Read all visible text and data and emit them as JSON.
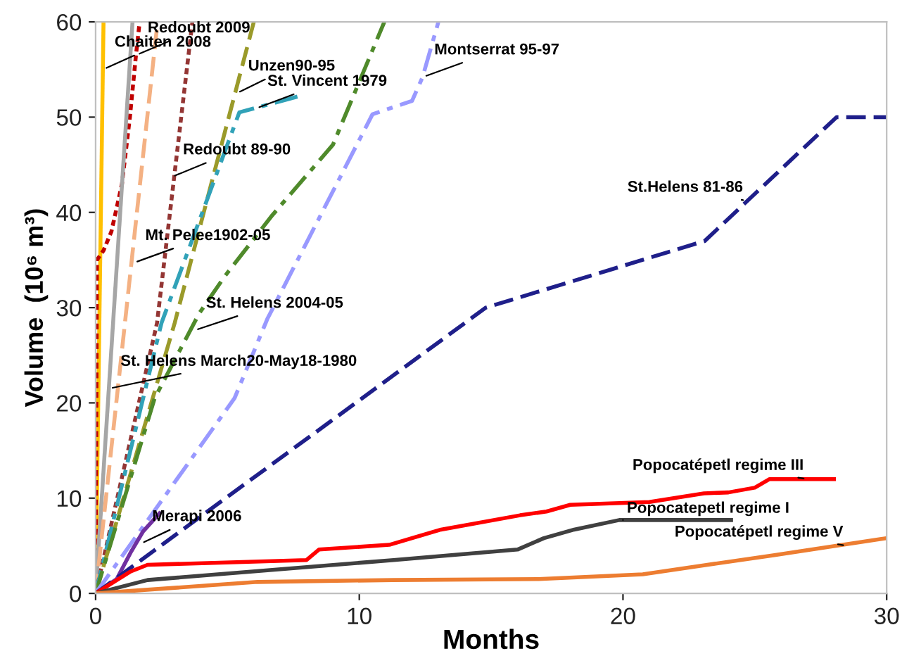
{
  "chart_data": {
    "type": "line",
    "xlabel": "Months",
    "ylabel": "Volume  (10⁶ m³)",
    "xlim": [
      0,
      30
    ],
    "ylim": [
      0,
      60
    ],
    "xticks": [
      0,
      10,
      20,
      30
    ],
    "yticks": [
      0,
      10,
      20,
      30,
      40,
      50,
      60
    ],
    "grid": false,
    "legend": false,
    "marker": "none",
    "series": [
      {
        "color": "#ffc000",
        "line_style": "solid",
        "x": [
          0,
          0.3
        ],
        "values": [
          0,
          60
        ]
      },
      {
        "color": "#c00000",
        "line_style": "dotted",
        "x": [
          0,
          0.05,
          0.3,
          0.6,
          1.0,
          1.3,
          1.53,
          1.67
        ],
        "values": [
          0,
          35,
          36,
          38,
          43,
          50,
          56.5,
          60
        ]
      },
      {
        "color": "#a6a6a6",
        "line_style": "solid",
        "x": [
          0,
          1.4
        ],
        "values": [
          0,
          60
        ]
      },
      {
        "color": "#f4b183",
        "line_style": "dashed",
        "x": [
          0,
          2.35
        ],
        "values": [
          0,
          60
        ]
      },
      {
        "color": "#943634",
        "line_style": "dotted",
        "x": [
          0,
          2.33,
          3.67
        ],
        "values": [
          0,
          28.4,
          60
        ]
      },
      {
        "color": "#9a9a2a",
        "line_style": "dashed",
        "x": [
          0,
          3.0,
          6.0
        ],
        "values": [
          0,
          28.4,
          60
        ]
      },
      {
        "color": "#31a2b8",
        "line_style": "dashdot",
        "x": [
          0,
          2.5,
          5.45,
          7.85
        ],
        "values": [
          0,
          28.4,
          50.5,
          52.3
        ]
      },
      {
        "color": "#4f8a2b",
        "line_style": "dashdot",
        "x": [
          0,
          2.24,
          3.93,
          4.9,
          6.7,
          9.0,
          10.95
        ],
        "values": [
          0,
          20.5,
          29.4,
          33.3,
          39.7,
          47.1,
          60
        ]
      },
      {
        "color": "#9999ff",
        "line_style": "dashdot",
        "x": [
          0,
          5.27,
          6.51,
          10.5,
          12.0,
          12.4,
          13.0
        ],
        "values": [
          0,
          20.5,
          28.8,
          50.3,
          51.7,
          54.2,
          60
        ]
      },
      {
        "color": "#7030a0",
        "line_style": "solid",
        "x": [
          0,
          0.8,
          1.35,
          1.8,
          2.42
        ],
        "values": [
          0,
          1.5,
          4.4,
          6.5,
          8.4
        ]
      },
      {
        "color": "#1f1f8a",
        "line_style": "dashed",
        "x": [
          0,
          14.8,
          23.1,
          28.1,
          30
        ],
        "values": [
          0,
          30,
          37,
          50,
          50
        ]
      },
      {
        "color": "#ff0000",
        "line_style": "solid",
        "x": [
          0,
          1.33,
          1.97,
          8.0,
          8.47,
          11.14,
          13.1,
          16.1,
          17.1,
          18.0,
          21.0,
          23.07,
          24.0,
          25.0,
          25.56,
          28.0
        ],
        "values": [
          0,
          2.3,
          3.0,
          3.5,
          4.6,
          5.1,
          6.7,
          8.2,
          8.6,
          9.3,
          9.6,
          10.5,
          10.6,
          11.1,
          12.0,
          12.0
        ]
      },
      {
        "color": "#404040",
        "line_style": "solid",
        "x": [
          0,
          1.97,
          11.3,
          16.0,
          17.0,
          18.15,
          19.86,
          24.1
        ],
        "values": [
          0,
          1.4,
          3.5,
          4.6,
          5.8,
          6.7,
          7.7,
          7.7
        ]
      },
      {
        "color": "#ed7d31",
        "line_style": "solid",
        "x": [
          0,
          6.14,
          11.3,
          16.8,
          20.75,
          23.2,
          25.7,
          30
        ],
        "values": [
          0,
          1.2,
          1.4,
          1.5,
          2.0,
          3.0,
          4.0,
          5.8
        ]
      }
    ],
    "annotations": [
      {
        "text": "Chaiten 2008",
        "x": 0.275,
        "y": 55
      },
      {
        "text": "Redoubt 2009",
        "x": 1.53,
        "y": 56.5
      },
      {
        "text": "Unzen90-95",
        "x": 5.34,
        "y": 52.5
      },
      {
        "text": "St. Vincent 1979",
        "x": 6.07,
        "y": 50.9
      },
      {
        "text": "Montserrat 95-97",
        "x": 12.4,
        "y": 54.2
      },
      {
        "text": "Redoubt 89-90",
        "x": 2.87,
        "y": 43.7
      },
      {
        "text": "St.Helens 81-86",
        "x": 24.7,
        "y": 41.2
      },
      {
        "text": "Mt. Pelee1902-05",
        "x": 1.44,
        "y": 34.7
      },
      {
        "text": "St. Helens 2004-05",
        "x": 3.74,
        "y": 27.6
      },
      {
        "text": "St. Helens March20-May18-1980",
        "x": 0.5,
        "y": 21.5
      },
      {
        "text": "Popocatépetl regime III",
        "x": 27,
        "y": 12
      },
      {
        "text": "Merapi 2006",
        "x": 1.7,
        "y": 5.2
      },
      {
        "text": "Popocatepetl regime I",
        "x": 20,
        "y": 7.7
      },
      {
        "text": "Popocatépetl regime V",
        "x": 28.5,
        "y": 5
      }
    ]
  }
}
